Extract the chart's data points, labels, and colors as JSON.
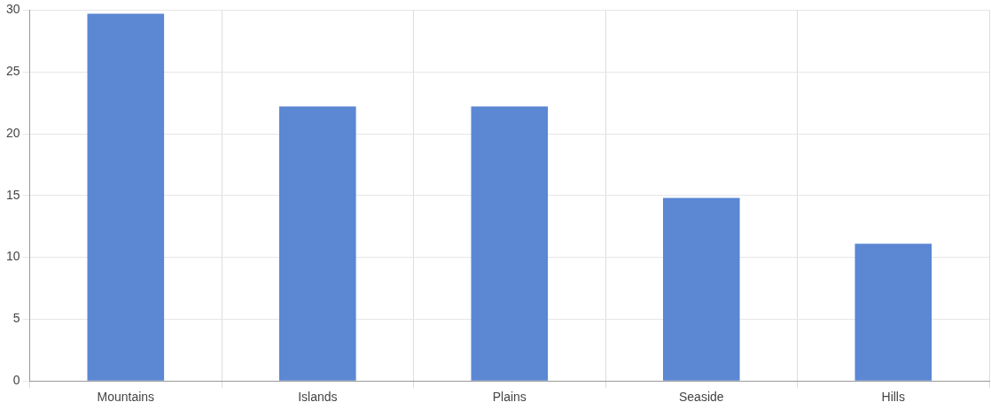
{
  "chart_data": {
    "type": "bar",
    "categories": [
      "Mountains",
      "Islands",
      "Plains",
      "Seaside",
      "Hills"
    ],
    "values": [
      29.7,
      22.2,
      22.2,
      14.8,
      11.1
    ],
    "color": "#5b87d3",
    "ylim": [
      0,
      30
    ],
    "yticks": [
      0,
      5,
      10,
      15,
      20,
      25,
      30
    ],
    "grid": true
  }
}
